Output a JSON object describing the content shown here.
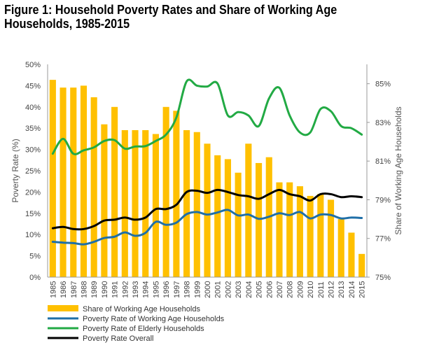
{
  "title": "Figure 1: Household Poverty Rates and Share of Working Age Households, 1985-2015",
  "colors": {
    "bars": "#FFC000",
    "working": "#1F6FA8",
    "elderly": "#22AA44",
    "overall": "#000000"
  },
  "chart_data": {
    "type": "bar",
    "title": "Figure 1: Household Poverty Rates and Share of Working Age Households, 1985-2015",
    "xlabel": "",
    "ylabel": "Poverty Rate (%)",
    "y2label": "Share of Working Age Households",
    "ylim": [
      0,
      50
    ],
    "y2lim": [
      75,
      86
    ],
    "yticks": [
      "0%",
      "5%",
      "10%",
      "15%",
      "20%",
      "25%",
      "30%",
      "35%",
      "40%",
      "45%",
      "50%"
    ],
    "y2ticks": [
      "75%",
      "77%",
      "79%",
      "81%",
      "83%",
      "85%"
    ],
    "legend_position": "bottom-left",
    "grid": false,
    "categories": [
      "1985",
      "1986",
      "1987",
      "1988",
      "1989",
      "1990",
      "1991",
      "1992",
      "1993",
      "1994",
      "1995",
      "1996",
      "1997",
      "1998",
      "1999",
      "2000",
      "2001",
      "2002",
      "2003",
      "2004",
      "2005",
      "2006",
      "2007",
      "2008",
      "2009",
      "2010",
      "2011",
      "2012",
      "2013",
      "2014",
      "2015"
    ],
    "bar_series": {
      "name": "Share of Working Age Households",
      "axis": "right",
      "values": [
        85.2,
        84.8,
        84.8,
        84.9,
        84.3,
        82.9,
        83.8,
        82.6,
        82.6,
        82.6,
        82.4,
        83.8,
        83.6,
        82.6,
        82.5,
        81.9,
        81.3,
        81.1,
        80.4,
        81.9,
        80.9,
        81.2,
        79.9,
        79.9,
        79.7,
        79.2,
        79.3,
        79.0,
        78.0,
        77.3,
        76.2
      ]
    },
    "series": [
      {
        "name": "Poverty Rate of Working Age Households",
        "axis": "left",
        "values": [
          8.3,
          8.1,
          8.0,
          7.7,
          8.3,
          9.2,
          9.5,
          10.5,
          9.7,
          10.4,
          13.0,
          12.3,
          12.8,
          14.8,
          15.3,
          14.7,
          15.2,
          15.8,
          14.5,
          14.7,
          13.7,
          14.2,
          15.0,
          14.6,
          15.3,
          13.8,
          14.7,
          14.6,
          13.8,
          14.0,
          13.9
        ]
      },
      {
        "name": "Poverty Rate of Elderly Households",
        "axis": "left",
        "values": [
          29.0,
          32.5,
          29.0,
          29.8,
          30.5,
          32.0,
          32.2,
          30.2,
          30.7,
          30.8,
          32.0,
          33.5,
          37.5,
          46.0,
          45.0,
          44.8,
          45.5,
          38.0,
          38.8,
          38.0,
          35.5,
          42.0,
          44.5,
          38.0,
          34.0,
          34.0,
          39.5,
          39.0,
          35.5,
          35.0,
          33.5
        ]
      },
      {
        "name": "Poverty Rate Overall",
        "axis": "left",
        "values": [
          11.5,
          11.8,
          11.3,
          11.3,
          12.0,
          13.3,
          13.5,
          14.0,
          13.5,
          14.0,
          16.0,
          16.0,
          17.0,
          20.0,
          20.3,
          19.8,
          20.5,
          20.0,
          19.3,
          19.0,
          18.4,
          19.5,
          20.5,
          19.5,
          19.0,
          18.0,
          19.5,
          19.5,
          18.8,
          19.0,
          18.8
        ]
      }
    ]
  }
}
